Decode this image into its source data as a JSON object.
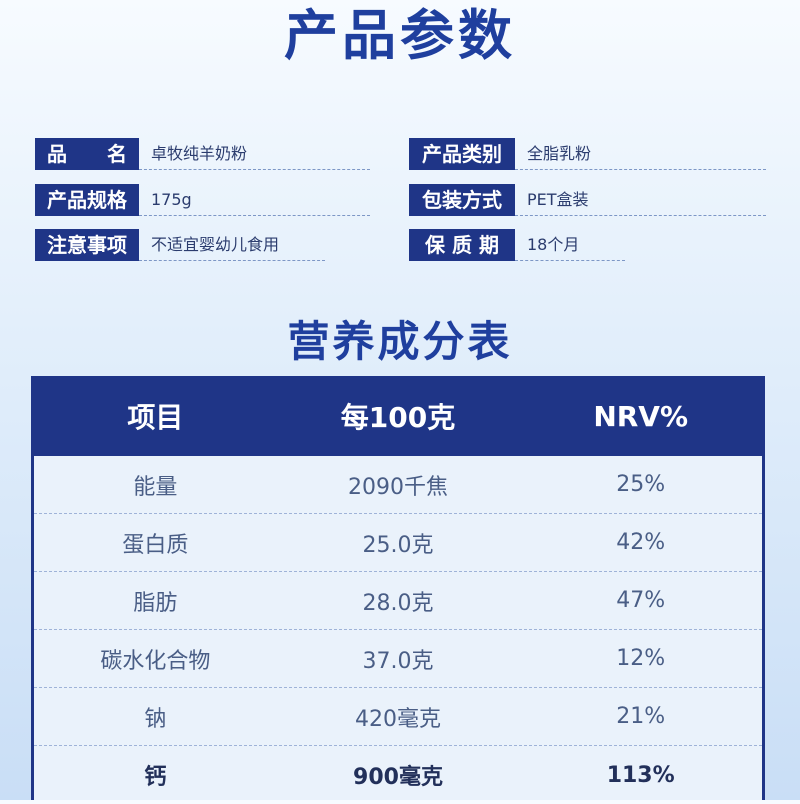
{
  "title": "产品参数",
  "params": [
    {
      "label": "品　　名",
      "value": "卓牧纯羊奶粉"
    },
    {
      "label": "产品类别",
      "value": "全脂乳粉"
    },
    {
      "label": "产品规格",
      "value": "175g"
    },
    {
      "label": "包装方式",
      "value": "PET盒装"
    },
    {
      "label": "注意事项",
      "value": "不适宜婴幼儿食用"
    },
    {
      "label": "保 质 期",
      "value": "18个月"
    }
  ],
  "nutrition": {
    "title": "营养成分表",
    "headers": [
      "项目",
      "每100克",
      "NRV%"
    ],
    "rows": [
      [
        "能量",
        "2090千焦",
        "25%"
      ],
      [
        "蛋白质",
        "25.0克",
        "42%"
      ],
      [
        "脂肪",
        "28.0克",
        "47%"
      ],
      [
        "碳水化合物",
        "37.0克",
        "12%"
      ],
      [
        "钠",
        "420毫克",
        "21%"
      ],
      [
        "钙",
        "900毫克",
        "113%"
      ]
    ]
  },
  "colors": {
    "primary": "#1f3587",
    "title": "#1f3f9e",
    "table_bg": "#eaf2fb"
  }
}
